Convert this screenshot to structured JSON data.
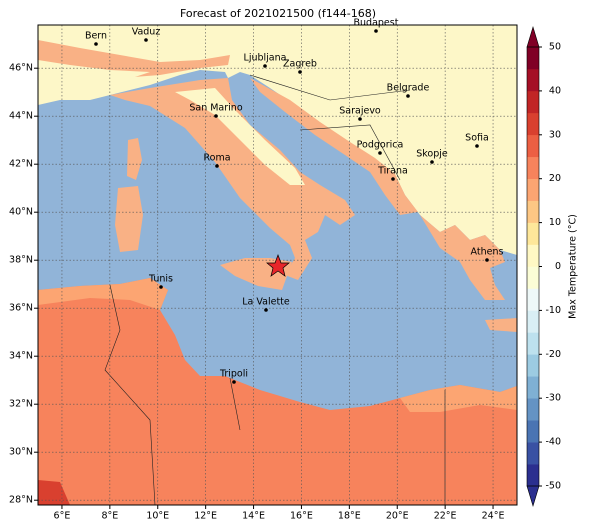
{
  "chart_data": {
    "type": "map",
    "title": "Forecast of 2021021500 (f144-168)",
    "xlim": [
      5,
      25
    ],
    "ylim": [
      27.8,
      47.8
    ],
    "xticks": [
      {
        "value": 6,
        "label": "6°E"
      },
      {
        "value": 8,
        "label": "8°E"
      },
      {
        "value": 10,
        "label": "10°E"
      },
      {
        "value": 12,
        "label": "12°E"
      },
      {
        "value": 14,
        "label": "14°E"
      },
      {
        "value": 16,
        "label": "16°E"
      },
      {
        "value": 18,
        "label": "18°E"
      },
      {
        "value": 20,
        "label": "20°E"
      },
      {
        "value": 22,
        "label": "22°E"
      },
      {
        "value": 24,
        "label": "24°E"
      }
    ],
    "yticks": [
      {
        "value": 28,
        "label": "28°N"
      },
      {
        "value": 30,
        "label": "30°N"
      },
      {
        "value": 32,
        "label": "32°N"
      },
      {
        "value": 34,
        "label": "34°N"
      },
      {
        "value": 36,
        "label": "36°N"
      },
      {
        "value": 38,
        "label": "38°N"
      },
      {
        "value": 40,
        "label": "40°N"
      },
      {
        "value": 42,
        "label": "42°N"
      },
      {
        "value": 44,
        "label": "44°N"
      },
      {
        "value": 46,
        "label": "46°N"
      }
    ],
    "grid": true,
    "cities": [
      "Bern",
      "Vaduz",
      "Budapest",
      "Ljubljana",
      "Zagreb",
      "Belgrade",
      "San Marino",
      "Sarajevo",
      "Sofia",
      "Podgorica",
      "Skopje",
      "Roma",
      "Tirana",
      "Athens",
      "Tunis",
      "La Valette",
      "Tripoli"
    ],
    "colorbar": {
      "label": "Max Temperature (°C)",
      "lim": [
        -50,
        50
      ],
      "ticks": [
        -50,
        -40,
        -30,
        -20,
        -10,
        0,
        10,
        20,
        30,
        40,
        50
      ],
      "colors": [
        "#2b2f8f",
        "#3951a3",
        "#4a74b3",
        "#6493c4",
        "#7fb0d4",
        "#9ccbe2",
        "#bde1ee",
        "#d9eff5",
        "#eef8f8",
        "#fbfdd6",
        "#fff8c4",
        "#fee79a",
        "#fdc784",
        "#fca572",
        "#f7835c",
        "#ec5f43",
        "#d9402f",
        "#c12526",
        "#a50f26",
        "#800026"
      ]
    }
  }
}
